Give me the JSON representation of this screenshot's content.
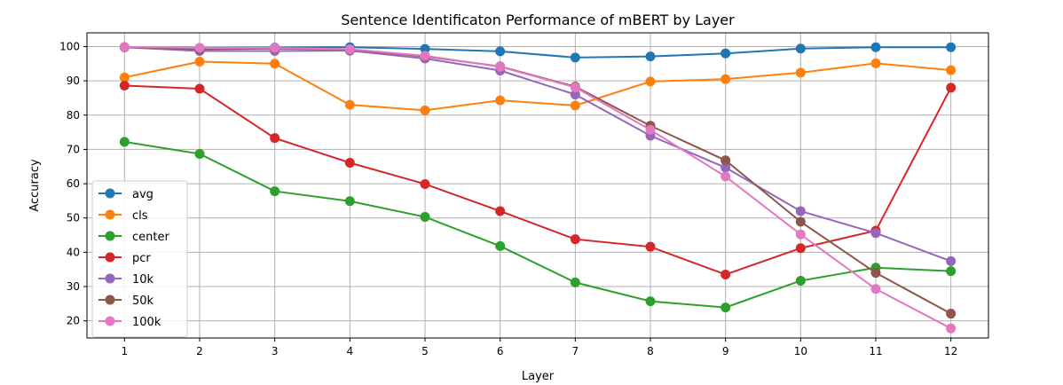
{
  "chart_data": {
    "type": "line",
    "title": "Sentence Identificaton Performance of mBERT by Layer",
    "xlabel": "Layer",
    "ylabel": "Accuracy",
    "x": [
      1,
      2,
      3,
      4,
      5,
      6,
      7,
      8,
      9,
      10,
      11,
      12
    ],
    "xlim": [
      0.5,
      12.5
    ],
    "ylim": [
      15,
      104
    ],
    "yticks": [
      20,
      30,
      40,
      50,
      60,
      70,
      80,
      90,
      100
    ],
    "grid": true,
    "legend_position": "lower-left",
    "series": [
      {
        "name": "avg",
        "color": "#1f77b4",
        "values": [
          99.8,
          99.6,
          99.7,
          99.8,
          99.3,
          98.6,
          96.8,
          97.1,
          98.0,
          99.4,
          99.8,
          99.8
        ]
      },
      {
        "name": "cls",
        "color": "#ff7f0e",
        "values": [
          91.0,
          95.6,
          95.0,
          83.0,
          81.4,
          84.3,
          82.8,
          89.8,
          90.5,
          92.4,
          95.1,
          93.1
        ]
      },
      {
        "name": "center",
        "color": "#2ca02c",
        "values": [
          72.2,
          68.7,
          57.8,
          54.9,
          50.3,
          41.8,
          31.2,
          25.7,
          23.9,
          31.7,
          35.5,
          34.5
        ]
      },
      {
        "name": "pcr",
        "color": "#d62728",
        "values": [
          88.6,
          87.7,
          73.3,
          66.1,
          59.9,
          52.0,
          43.8,
          41.6,
          33.5,
          41.2,
          46.3,
          88.0
        ]
      },
      {
        "name": "10k",
        "color": "#9467bd",
        "values": [
          99.8,
          98.7,
          98.7,
          98.8,
          96.5,
          93.0,
          86.0,
          74.0,
          64.7,
          52.0,
          45.6,
          37.4
        ]
      },
      {
        "name": "50k",
        "color": "#8c564b",
        "values": [
          99.8,
          99.2,
          99.4,
          99.1,
          97.1,
          94.2,
          88.3,
          76.9,
          66.8,
          48.9,
          34.0,
          22.1
        ]
      },
      {
        "name": "100k",
        "color": "#e377c2",
        "values": [
          99.9,
          99.6,
          99.6,
          99.2,
          97.3,
          94.1,
          88.1,
          75.7,
          62.1,
          45.2,
          29.3,
          17.8
        ]
      }
    ]
  }
}
